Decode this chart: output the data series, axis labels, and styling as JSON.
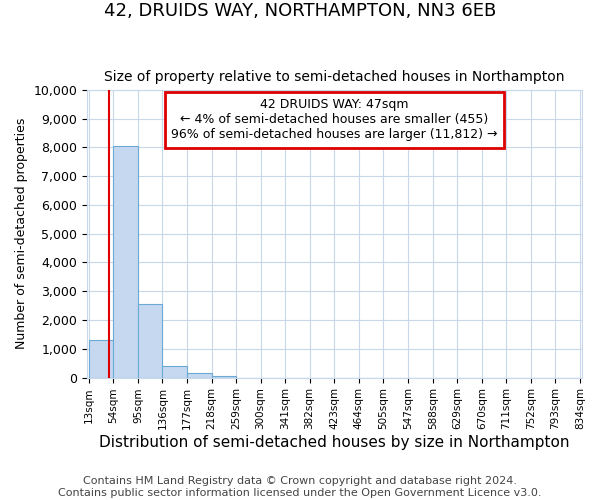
{
  "title1": "42, DRUIDS WAY, NORTHAMPTON, NN3 6EB",
  "title2": "Size of property relative to semi-detached houses in Northampton",
  "xlabel": "Distribution of semi-detached houses by size in Northampton",
  "ylabel": "Number of semi-detached properties",
  "footnote1": "Contains HM Land Registry data © Crown copyright and database right 2024.",
  "footnote2": "Contains public sector information licensed under the Open Government Licence v3.0.",
  "annotation_line1": "42 DRUIDS WAY: 47sqm",
  "annotation_line2": "← 4% of semi-detached houses are smaller (455)",
  "annotation_line3": "96% of semi-detached houses are larger (11,812) →",
  "bar_edges": [
    13,
    54,
    95,
    136,
    177,
    218,
    259,
    300,
    341,
    382,
    423,
    464,
    505,
    547,
    588,
    629,
    670,
    711,
    752,
    793,
    834
  ],
  "bar_heights": [
    1300,
    8050,
    2550,
    400,
    175,
    50,
    0,
    0,
    0,
    0,
    0,
    0,
    0,
    0,
    0,
    0,
    0,
    0,
    0,
    0
  ],
  "bar_color": "#c5d8f0",
  "bar_edge_color": "#6aaad4",
  "red_line_x": 47,
  "ylim": [
    0,
    10000
  ],
  "yticks": [
    0,
    1000,
    2000,
    3000,
    4000,
    5000,
    6000,
    7000,
    8000,
    9000,
    10000
  ],
  "background_color": "#ffffff",
  "grid_color": "#c8d8e8",
  "annotation_box_edge_color": "#dd0000",
  "red_line_color": "#dd0000",
  "title_fontsize": 13,
  "subtitle_fontsize": 10,
  "ylabel_fontsize": 9,
  "xlabel_fontsize": 11,
  "annotation_fontsize": 9,
  "footnote_fontsize": 8
}
